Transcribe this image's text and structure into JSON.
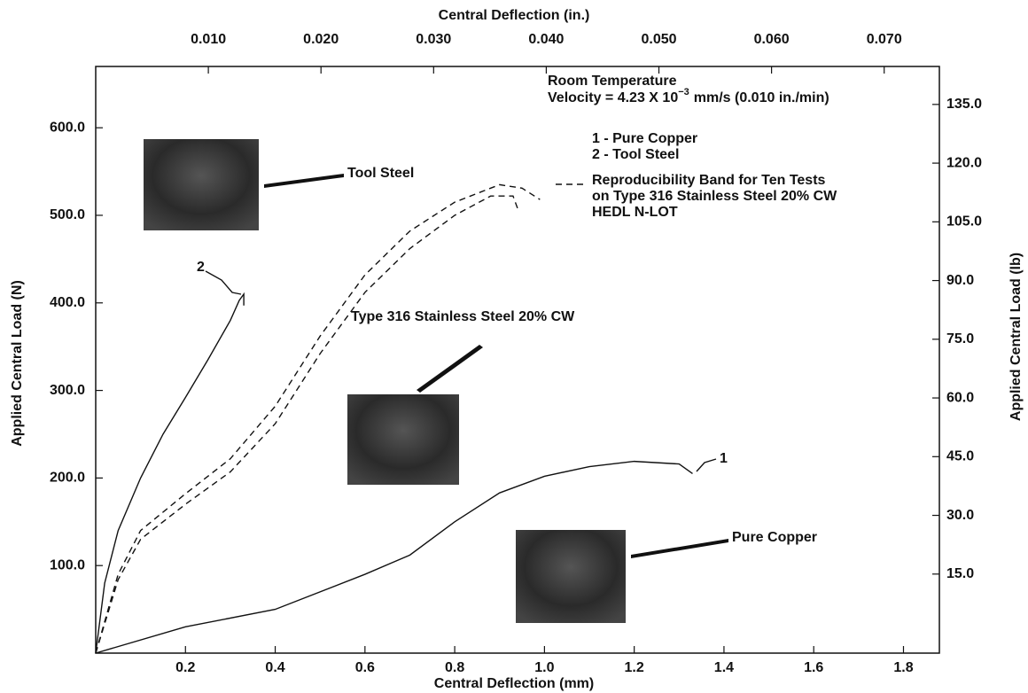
{
  "chart_data": {
    "type": "line",
    "x_label": "Central Deflection (mm)",
    "x2_label": "Central Deflection (in.)",
    "y_label": "Applied Central Load (N)",
    "y2_label": "Applied Central Load (lb)",
    "xlim": [
      0,
      1.88
    ],
    "xticks": [
      0.2,
      0.4,
      0.6,
      0.8,
      {
        "value": 1,
        "label": "1.0"
      },
      1.2,
      1.4,
      1.6,
      1.8
    ],
    "x2lim": [
      0,
      0.0749
    ],
    "x2ticks": [
      {
        "value": 0.01,
        "label": "0.010"
      },
      {
        "value": 0.02,
        "label": "0.020"
      },
      {
        "value": 0.03,
        "label": "0.030"
      },
      {
        "value": 0.04,
        "label": "0.040"
      },
      {
        "value": 0.05,
        "label": "0.050"
      },
      {
        "value": 0.06,
        "label": "0.060"
      },
      {
        "value": 0.07,
        "label": "0.070"
      }
    ],
    "ylim": [
      0,
      670
    ],
    "yticks": [
      {
        "value": 100,
        "label": "100.0"
      },
      {
        "value": 200,
        "label": "200.0"
      },
      {
        "value": 300,
        "label": "300.0"
      },
      {
        "value": 400,
        "label": "400.0"
      },
      {
        "value": 500,
        "label": "500.0"
      },
      {
        "value": 600,
        "label": "600.0"
      }
    ],
    "y2lim": [
      -5.2,
      144.7
    ],
    "y2ticks": [
      {
        "value": 15,
        "label": "15.0"
      },
      {
        "value": 30,
        "label": "30.0"
      },
      {
        "value": 45,
        "label": "45.0"
      },
      {
        "value": 60,
        "label": "60.0"
      },
      {
        "value": 75,
        "label": "75.0"
      },
      {
        "value": 90,
        "label": "90.0"
      },
      {
        "value": 105,
        "label": "105.0"
      },
      {
        "value": 120,
        "label": "120.0"
      },
      {
        "value": 135,
        "label": "135.0"
      }
    ],
    "series": [
      {
        "label": "1",
        "color": "#111111",
        "dashed": false,
        "x": [
          0,
          0.2,
          0.4,
          0.6,
          0.7,
          0.8,
          0.9,
          1.0,
          1.1,
          1.2,
          1.3,
          1.33
        ],
        "values": [
          0,
          30,
          50,
          90,
          112,
          150,
          183,
          202,
          213,
          219,
          216,
          205
        ]
      },
      {
        "label": "2",
        "color": "#111111",
        "dashed": false,
        "x": [
          0,
          0.02,
          0.05,
          0.1,
          0.15,
          0.2,
          0.25,
          0.3,
          0.32,
          0.33,
          0.33
        ],
        "values": [
          0,
          80,
          140,
          200,
          250,
          292,
          335,
          380,
          403,
          410,
          397
        ]
      },
      {
        "color": "#111111",
        "dashed": true,
        "x": [
          0,
          0.05,
          0.1,
          0.2,
          0.3,
          0.4,
          0.5,
          0.6,
          0.7,
          0.8,
          0.9,
          0.95,
          0.99
        ],
        "values": [
          0,
          90,
          140,
          182,
          222,
          282,
          362,
          432,
          482,
          515,
          535,
          531,
          518
        ]
      },
      {
        "color": "#111111",
        "dashed": true,
        "x": [
          0,
          0.05,
          0.1,
          0.2,
          0.3,
          0.4,
          0.5,
          0.6,
          0.7,
          0.8,
          0.88,
          0.93,
          0.94
        ],
        "values": [
          0,
          84,
          130,
          170,
          207,
          262,
          342,
          412,
          462,
          500,
          522,
          522,
          508
        ]
      }
    ],
    "conditions": [
      "Room Temperature",
      "Velocity = 4.23 X 10",
      "−3",
      "mm/s (0.010 in./min)"
    ],
    "legend": [
      "1 - Pure Copper",
      "2 - Tool Steel",
      "Reproducibility Band for Ten Tests",
      "on Type 316 Stainless Steel 20% CW",
      "HEDL N-LOT"
    ],
    "annotations": [
      "Tool Steel",
      "Type 316 Stainless Steel 20% CW",
      "Pure Copper"
    ]
  }
}
